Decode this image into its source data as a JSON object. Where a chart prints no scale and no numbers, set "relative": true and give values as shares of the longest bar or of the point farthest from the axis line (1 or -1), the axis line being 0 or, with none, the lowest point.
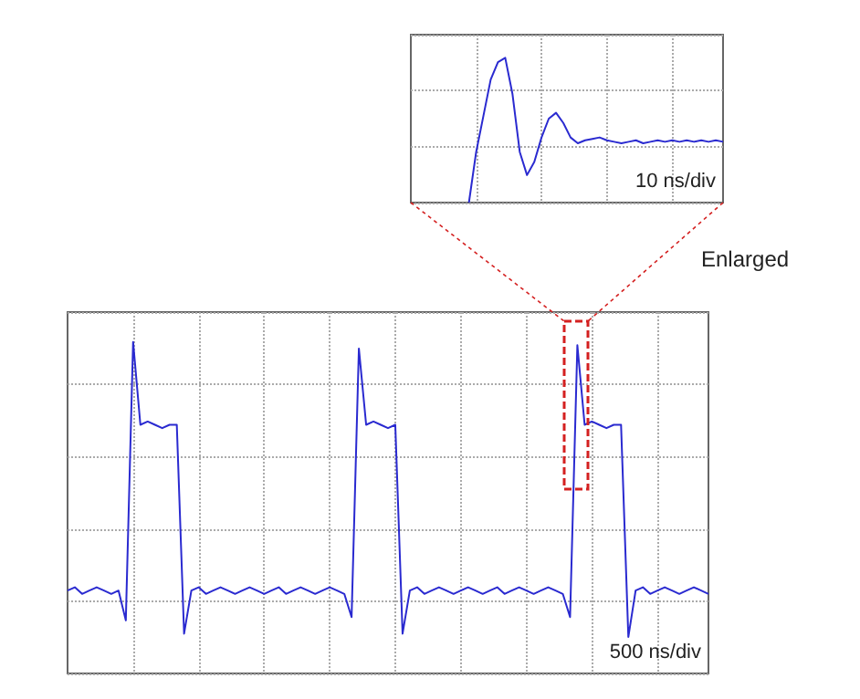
{
  "chart_data": [
    {
      "type": "line",
      "relative": true,
      "grid": true,
      "annotations": [
        "10 ns/div",
        "Enlarged"
      ],
      "categories": [
        null,
        null,
        null,
        null,
        null,
        null,
        null,
        null,
        null,
        null,
        null,
        null,
        null,
        null,
        null,
        null,
        null,
        null,
        null,
        null,
        null,
        null,
        null,
        null,
        null,
        null,
        null,
        null,
        null,
        null,
        null,
        null,
        null,
        null,
        null,
        null,
        null,
        null,
        null,
        null,
        null,
        null,
        null,
        null
      ],
      "series": [
        {
          "color": "#2a2ad0",
          "values": [
            null,
            null,
            null,
            null,
            null,
            null,
            null,
            null,
            0.0,
            0.35,
            0.6,
            0.85,
            0.97,
            1.0,
            0.75,
            0.35,
            0.19,
            0.28,
            0.45,
            0.58,
            0.62,
            0.55,
            0.45,
            0.41,
            0.43,
            0.44,
            0.45,
            0.43,
            0.42,
            0.41,
            0.42,
            0.43,
            0.41,
            0.42,
            0.43,
            0.42,
            0.43,
            0.42,
            0.43,
            0.42,
            0.43,
            0.42,
            0.43,
            0.42
          ]
        }
      ]
    },
    {
      "type": "line",
      "relative": true,
      "grid": true,
      "annotations": [
        "500 ns/div"
      ],
      "categories": [
        null,
        null,
        null,
        null,
        null,
        null,
        null,
        null,
        null,
        null,
        null,
        null,
        null,
        null,
        null,
        null,
        null,
        null,
        null,
        null,
        null,
        null,
        null,
        null,
        null,
        null,
        null,
        null,
        null,
        null,
        null,
        null,
        null,
        null,
        null,
        null,
        null,
        null,
        null,
        null,
        null,
        null,
        null,
        null,
        null,
        null,
        null,
        null,
        null,
        null,
        null,
        null,
        null,
        null,
        null,
        null,
        null,
        null,
        null,
        null,
        null,
        null,
        null,
        null,
        null,
        null,
        null,
        null,
        null,
        null,
        null,
        null,
        null,
        null,
        null,
        null,
        null,
        null,
        null,
        null,
        null,
        null,
        null,
        null,
        null,
        null,
        null,
        null,
        null
      ],
      "series": [
        {
          "color": "#2a2ad0",
          "values": [
            0.25,
            0.26,
            0.24,
            0.25,
            0.26,
            0.25,
            0.24,
            0.25,
            0.16,
            1.0,
            0.75,
            0.76,
            0.75,
            0.74,
            0.75,
            0.75,
            0.12,
            0.25,
            0.26,
            0.24,
            0.25,
            0.26,
            0.25,
            0.24,
            0.25,
            0.26,
            0.25,
            0.24,
            0.25,
            0.26,
            0.24,
            0.25,
            0.26,
            0.25,
            0.24,
            0.25,
            0.26,
            0.25,
            0.24,
            0.17,
            0.98,
            0.75,
            0.76,
            0.75,
            0.74,
            0.75,
            0.12,
            0.25,
            0.26,
            0.24,
            0.25,
            0.26,
            0.25,
            0.24,
            0.25,
            0.26,
            0.25,
            0.24,
            0.25,
            0.26,
            0.24,
            0.25,
            0.26,
            0.25,
            0.24,
            0.25,
            0.26,
            0.25,
            0.24,
            0.17,
            0.99,
            0.75,
            0.76,
            0.75,
            0.74,
            0.75,
            0.75,
            0.11,
            0.25,
            0.26,
            0.24,
            0.25,
            0.26,
            0.25,
            0.24,
            0.25,
            0.26,
            0.25,
            0.24
          ]
        }
      ]
    }
  ]
}
